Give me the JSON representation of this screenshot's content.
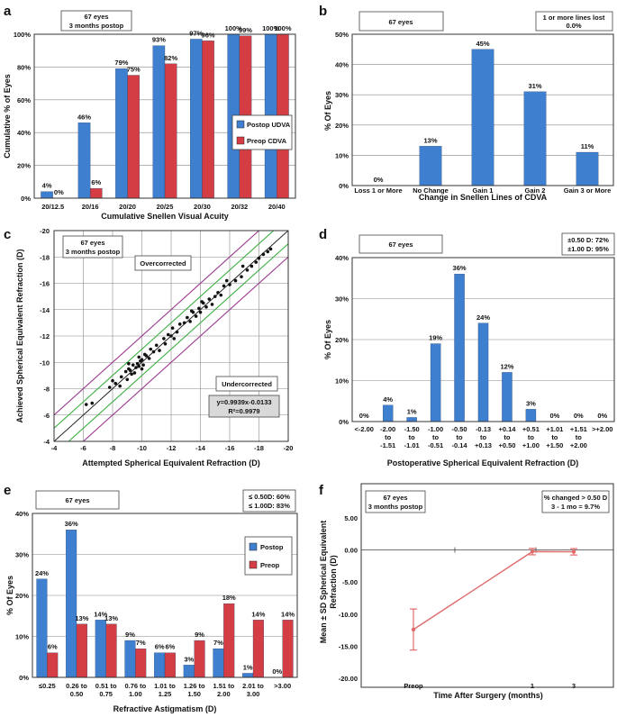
{
  "colors": {
    "blue": "#3f7fcf",
    "red": "#d43d43",
    "pink": "#e06b6b",
    "green": "#3cb043",
    "purple": "#9b3a8f",
    "gray_box": "#d9d9d9"
  },
  "panels": {
    "a": {
      "letter": "a",
      "box_lines": [
        "67 eyes",
        "3 months postop"
      ],
      "legend": [
        "Postop UDVA",
        "Preop CDVA"
      ]
    },
    "b": {
      "letter": "b",
      "box_left": "67 eyes",
      "box_right": [
        "1 or more lines lost",
        "0.0%"
      ]
    },
    "c": {
      "letter": "c",
      "box_lines": [
        "67 eyes",
        "3 months postop"
      ],
      "over_label": "Overcorrected",
      "under_label": "Undercorrected",
      "equation": [
        "y=0.9939x-0.0133",
        "R²=0.9979"
      ]
    },
    "d": {
      "letter": "d",
      "box_left": "67 eyes",
      "box_right": [
        "±0.50 D: 72%",
        "±1.00 D: 95%"
      ]
    },
    "e": {
      "letter": "e",
      "box_left": "67 eyes",
      "box_right": [
        "≤ 0.50D: 60%",
        "≤ 1.00D: 83%"
      ],
      "legend": [
        "Postop",
        "Preop"
      ]
    },
    "f": {
      "letter": "f",
      "box_lines": [
        "67 eyes",
        "3 months postop"
      ],
      "box_right": [
        "% changed > 0.50 D",
        "3 - 1 mo = 9.7%"
      ]
    }
  },
  "chart_data": [
    {
      "id": "a",
      "type": "bar",
      "title": "",
      "xlabel": "Cumulative Snellen Visual Acuity",
      "ylabel": "Cumulative % of Eyes",
      "ylim": [
        0,
        100
      ],
      "yticks": [
        "0%",
        "20%",
        "40%",
        "60%",
        "80%",
        "100%"
      ],
      "categories": [
        "20/12.5",
        "20/16",
        "20/20",
        "20/25",
        "20/30",
        "20/32",
        "20/40"
      ],
      "series": [
        {
          "name": "Postop UDVA",
          "values": [
            4,
            46,
            79,
            93,
            97,
            100,
            100
          ],
          "labels": [
            "4%",
            "46%",
            "79%",
            "93%",
            "97%",
            "100%",
            "100%"
          ]
        },
        {
          "name": "Preop CDVA",
          "values": [
            0,
            6,
            75,
            82,
            96,
            99,
            100
          ],
          "labels": [
            "0%",
            "6%",
            "75%",
            "82%",
            "96%",
            "99%",
            "100%"
          ]
        }
      ]
    },
    {
      "id": "b",
      "type": "bar",
      "xlabel": "Change in Snellen Lines of CDVA",
      "ylabel": "% Of Eyes",
      "ylim": [
        0,
        50
      ],
      "yticks": [
        "0%",
        "10%",
        "20%",
        "30%",
        "40%",
        "50%"
      ],
      "categories": [
        "Loss 1 or More",
        "No Change",
        "Gain 1",
        "Gain 2",
        "Gain 3 or More"
      ],
      "series": [
        {
          "name": "Eyes",
          "values": [
            0,
            13,
            45,
            31,
            11
          ],
          "labels": [
            "0%",
            "13%",
            "45%",
            "31%",
            "11%"
          ]
        }
      ]
    },
    {
      "id": "c",
      "type": "scatter",
      "xlabel": "Attempted Spherical Equivalent Refraction (D)",
      "ylabel": "Achieved Spherical Equivalent Refraction (D)",
      "xlim": [
        -4,
        -20
      ],
      "ylim": [
        -4,
        -20
      ],
      "xticks": [
        "-4",
        "-6",
        "-8",
        "-10",
        "-12",
        "-14",
        "-16",
        "-18",
        "-20"
      ],
      "yticks": [
        "-4",
        "-6",
        "-8",
        "-10",
        "-12",
        "-14",
        "-16",
        "-18",
        "-20"
      ],
      "x": [
        -6.2,
        -6.6,
        -7.8,
        -8.2,
        -8.5,
        -8.6,
        -8.9,
        -9.0,
        -9.1,
        -9.2,
        -9.3,
        -9.4,
        -9.5,
        -9.6,
        -9.7,
        -9.8,
        -9.9,
        -10.0,
        -10.0,
        -10.1,
        -10.3,
        -10.5,
        -10.6,
        -10.8,
        -11.0,
        -11.2,
        -11.5,
        -11.8,
        -12.0,
        -12.1,
        -12.4,
        -12.6,
        -12.9,
        -13.1,
        -13.3,
        -13.5,
        -13.7,
        -13.9,
        -14.0,
        -14.2,
        -14.4,
        -14.6,
        -14.8,
        -15.0,
        -15.2,
        -15.4,
        -15.6,
        -16.0,
        -16.4,
        -16.8,
        -17.2,
        -17.5,
        -17.8,
        -18.0,
        -18.3,
        -18.6,
        -18.8,
        -13.4,
        -14.1,
        -12.2,
        -9.1,
        -10.2,
        -11.6,
        -15.8,
        -16.9,
        -8.0,
        -9.8
      ],
      "y": [
        -6.8,
        -6.9,
        -8.1,
        -8.4,
        -8.2,
        -8.9,
        -9.3,
        -8.7,
        -9.5,
        -9.4,
        -9.1,
        -9.8,
        -9.2,
        -9.6,
        -9.9,
        -9.7,
        -10.1,
        -9.5,
        -10.2,
        -9.8,
        -10.5,
        -10.3,
        -11.0,
        -10.8,
        -11.3,
        -10.9,
        -11.8,
        -12.1,
        -12.0,
        -12.6,
        -12.3,
        -12.9,
        -13.0,
        -13.4,
        -13.1,
        -13.8,
        -13.5,
        -14.1,
        -13.8,
        -14.5,
        -14.2,
        -14.8,
        -14.4,
        -15.0,
        -15.3,
        -15.1,
        -15.8,
        -15.9,
        -16.2,
        -16.5,
        -17.0,
        -17.3,
        -17.6,
        -17.9,
        -18.2,
        -18.4,
        -18.6,
        -13.9,
        -14.6,
        -11.8,
        -9.9,
        -10.6,
        -11.4,
        -16.2,
        -17.3,
        -8.6,
        -10.4
      ],
      "fit": {
        "slope": 0.9939,
        "intercept": -0.0133,
        "r2": 0.9979
      }
    },
    {
      "id": "d",
      "type": "bar",
      "xlabel": "Postoperative Spherical Equivalent Refraction (D)",
      "ylabel": "% Of Eyes",
      "ylim": [
        0,
        40
      ],
      "yticks": [
        "0%",
        "10%",
        "20%",
        "30%",
        "40%"
      ],
      "categories": [
        [
          "<-2.00"
        ],
        [
          "-2.00",
          "to",
          "-1.51"
        ],
        [
          "-1.50",
          "to",
          "-1.01"
        ],
        [
          "-1.00",
          "to",
          "-0.51"
        ],
        [
          "-0.50",
          "to",
          "-0.14"
        ],
        [
          "-0.13",
          "to",
          "+0.13"
        ],
        [
          "+0.14",
          "to",
          "+0.50"
        ],
        [
          "+0.51",
          "to",
          "+1.00"
        ],
        [
          "+1.01",
          "to",
          "+1.50"
        ],
        [
          "+1.51",
          "to",
          "+2.00"
        ],
        [
          ">+2.00"
        ]
      ],
      "series": [
        {
          "name": "Eyes",
          "values": [
            0,
            4,
            1,
            19,
            36,
            24,
            12,
            3,
            0,
            0,
            0
          ],
          "labels": [
            "0%",
            "4%",
            "1%",
            "19%",
            "36%",
            "24%",
            "12%",
            "3%",
            "0%",
            "0%",
            "0%"
          ]
        }
      ]
    },
    {
      "id": "e",
      "type": "bar",
      "xlabel": "Refractive Astigmatism (D)",
      "ylabel": "% Of Eyes",
      "ylim": [
        0,
        40
      ],
      "yticks": [
        "0%",
        "10%",
        "20%",
        "30%",
        "40%"
      ],
      "categories": [
        [
          "≤0.25"
        ],
        [
          "0.26 to",
          "0.50"
        ],
        [
          "0.51 to",
          "0.75"
        ],
        [
          "0.76 to",
          "1.00"
        ],
        [
          "1.01 to",
          "1.25"
        ],
        [
          "1.26 to",
          "1.50"
        ],
        [
          "1.51 to",
          "2.00"
        ],
        [
          "2.01 to",
          "3.00"
        ],
        [
          ">3.00"
        ]
      ],
      "series": [
        {
          "name": "Postop",
          "values": [
            24,
            36,
            14,
            9,
            6,
            3,
            7,
            1,
            0
          ],
          "labels": [
            "24%",
            "36%",
            "14%",
            "9%",
            "6%",
            "3%",
            "7%",
            "1%",
            "0%"
          ]
        },
        {
          "name": "Preop",
          "values": [
            6,
            13,
            13,
            7,
            6,
            9,
            18,
            14,
            14
          ],
          "labels": [
            "6%",
            "13%",
            "13%",
            "7%",
            "6%",
            "9%",
            "18%",
            "14%",
            "14%"
          ]
        }
      ]
    },
    {
      "id": "f",
      "type": "line",
      "xlabel": "Time After Surgery (months)",
      "ylabel": [
        "Mean ± SD Spherical Equivalent",
        "Refraction (D)"
      ],
      "ylim": [
        -20,
        5
      ],
      "yticks": [
        "5.00",
        "0.00",
        "-5.00",
        "-10.00",
        "-15.00",
        "-20.00"
      ],
      "categories": [
        "Preop",
        "1",
        "3"
      ],
      "series": [
        {
          "name": "Mean SE",
          "values": [
            -12.4,
            -0.25,
            -0.28
          ],
          "sd": [
            3.2,
            0.5,
            0.5
          ]
        }
      ]
    }
  ]
}
